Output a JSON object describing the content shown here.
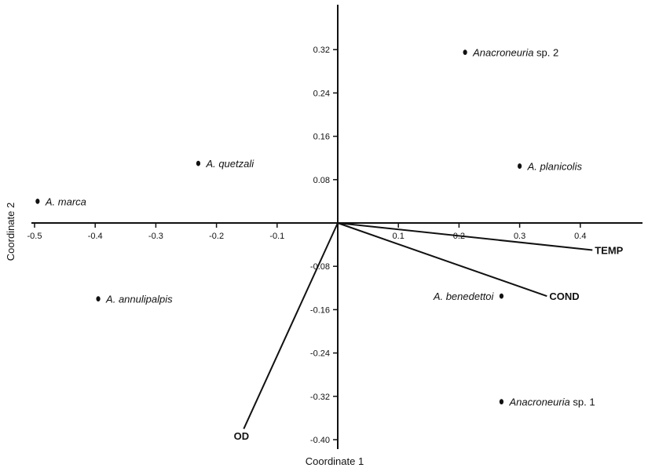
{
  "chart_data": {
    "type": "scatter",
    "xlabel": "Coordinate 1",
    "ylabel": "Coordinate 2",
    "xlim": [
      -0.5,
      0.5
    ],
    "ylim": [
      -0.4,
      0.4
    ],
    "x_ticks": [
      -0.5,
      -0.4,
      -0.3,
      -0.2,
      -0.1,
      0.1,
      0.2,
      0.3,
      0.4
    ],
    "x_tick_labels": [
      "-0.5",
      "-0.4",
      "-0.3",
      "-0.2",
      "-0.1",
      "0.1",
      "0.2",
      "0.3",
      "0.4"
    ],
    "y_ticks": [
      0.32,
      0.24,
      0.16,
      0.08,
      -0.08,
      -0.16,
      -0.24,
      -0.32,
      -0.4
    ],
    "y_tick_labels": [
      "0.32",
      "0.24",
      "0.16",
      "0.08",
      "-0.08",
      "-0.16",
      "-0.24",
      "-0.32",
      "-0.40"
    ],
    "grid": false,
    "legend": "none",
    "points": [
      {
        "label_italic": "Anacroneuria",
        "label_rest": " sp. 2",
        "x": 0.21,
        "y": 0.315,
        "label_side": "right"
      },
      {
        "label_italic": "A. quetzali",
        "label_rest": "",
        "x": -0.23,
        "y": 0.11,
        "label_side": "right"
      },
      {
        "label_italic": "A. planicolis",
        "label_rest": "",
        "x": 0.3,
        "y": 0.105,
        "label_side": "right"
      },
      {
        "label_italic": "A. marca",
        "label_rest": "",
        "x": -0.495,
        "y": 0.04,
        "label_side": "right"
      },
      {
        "label_italic": "A. annulipalpis",
        "label_rest": "",
        "x": -0.395,
        "y": -0.14,
        "label_side": "right"
      },
      {
        "label_italic": "A. benedettoi",
        "label_rest": "",
        "x": 0.27,
        "y": -0.135,
        "label_side": "left"
      },
      {
        "label_italic": "Anacroneuria",
        "label_rest": " sp. 1",
        "x": 0.27,
        "y": -0.33,
        "label_side": "right"
      }
    ],
    "vectors": [
      {
        "label": "TEMP",
        "x": 0.42,
        "y": -0.05
      },
      {
        "label": "COND",
        "x": 0.345,
        "y": -0.135
      },
      {
        "label": "OD",
        "x": -0.155,
        "y": -0.38
      }
    ]
  },
  "colors": {
    "ink": "#111111",
    "background": "#ffffff"
  }
}
